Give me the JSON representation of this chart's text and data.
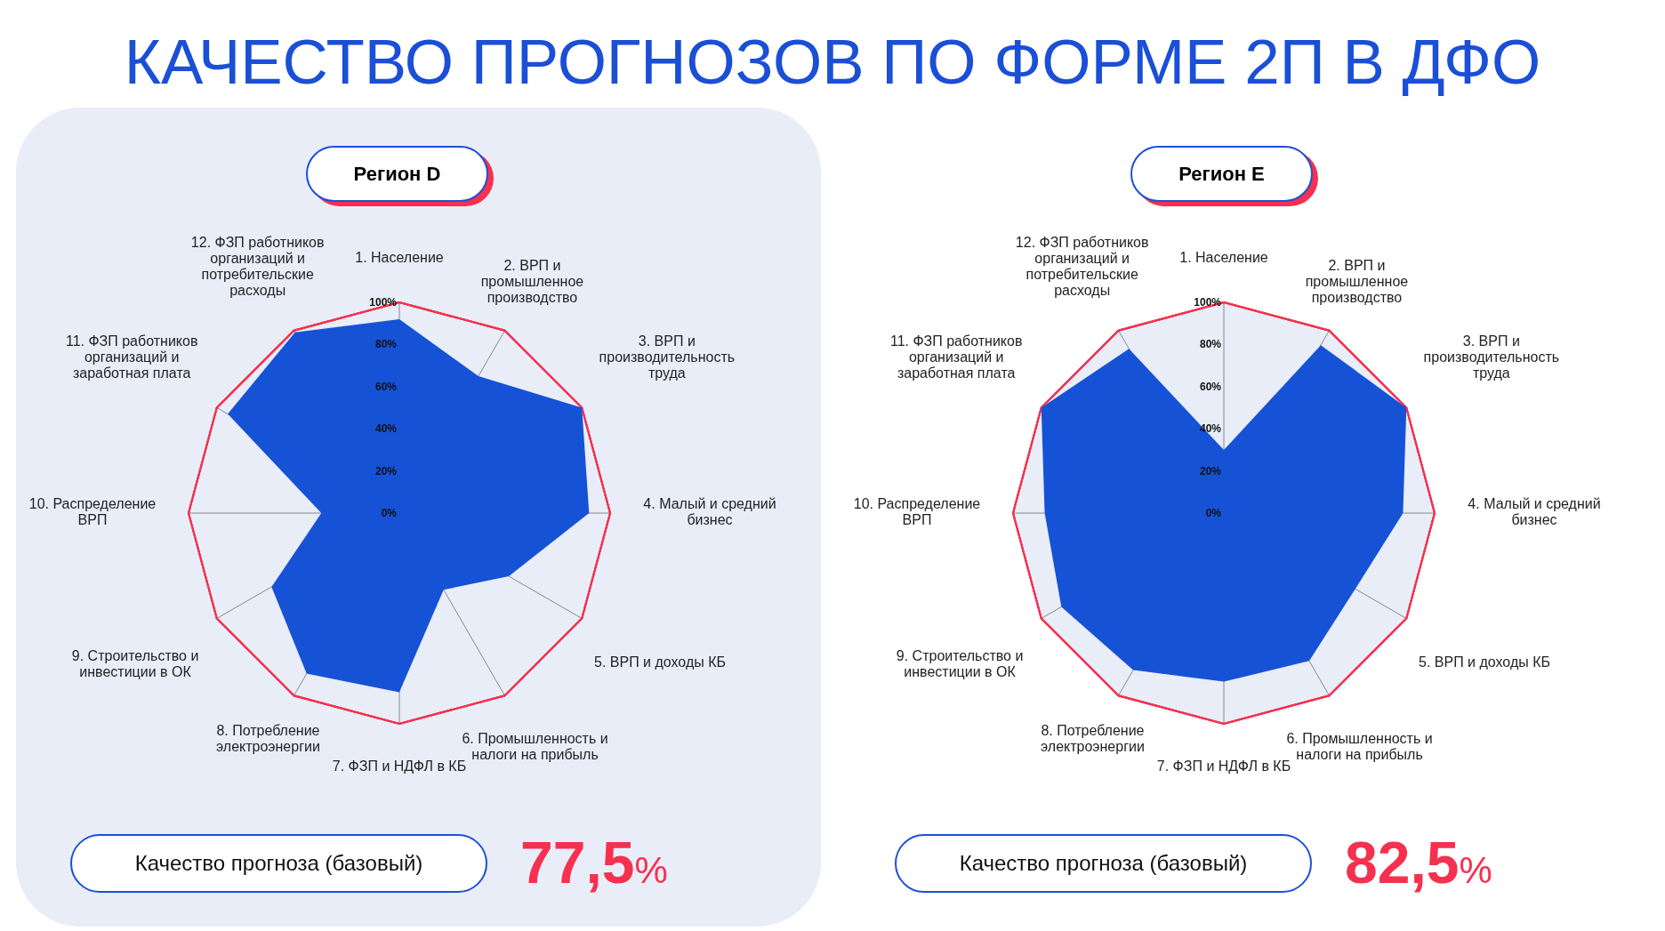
{
  "chart_data": [
    {
      "type": "radar",
      "title": "КАЧЕСТВО ПРОГНОЗОВ ПО ФОРМЕ 2П В ДФО",
      "subtitle": "Регион D",
      "categories": [
        "1. Население",
        "2. ВРП и промышленное производство",
        "3. ВРП и производительность труда",
        "4. Малый и средний бизнес",
        "5. ВРП и доходы КБ",
        "6. Промышленность и налоги на прибыль",
        "7. ФЗП и НДФЛ в КБ",
        "8. Потребление электроэнергии",
        "9. Строительство и инвестиции в ОК",
        "10. Распределение ВРП",
        "11. ФЗП работников организаций и заработная плата",
        "12. ФЗП работников организаций и потребительские расходы"
      ],
      "series": [
        {
          "color": "#1652d6",
          "values": [
            92,
            75,
            100,
            90,
            60,
            42,
            85,
            88,
            70,
            37,
            94,
            99
          ]
        }
      ],
      "ylim": [
        0,
        100
      ],
      "yticks": [
        {
          "value": 0,
          "label": "0%"
        },
        {
          "value": 20,
          "label": "20%"
        },
        {
          "value": 40,
          "label": "40%"
        },
        {
          "value": 60,
          "label": "60%"
        },
        {
          "value": 80,
          "label": "80%"
        },
        {
          "value": 100,
          "label": "100%"
        }
      ],
      "grid": true,
      "annotations": [
        "Качество прогноза (базовый)",
        "77,5%"
      ]
    },
    {
      "type": "radar",
      "subtitle": "Регион E",
      "categories": [
        "1. Население",
        "2. ВРП и промышленное производство",
        "3. ВРП и производительность труда",
        "4. Малый и средний бизнес",
        "5. ВРП и доходы КБ",
        "6. Промышленность и налоги на прибыль",
        "7. ФЗП и НДФЛ в КБ",
        "8. Потребление электроэнергии",
        "9. Строительство и инвестиции в ОК",
        "10. Распределение ВРП",
        "11. ФЗП работников организаций и заработная плата",
        "12. ФЗП работников организаций и потребительские расходы"
      ],
      "series": [
        {
          "color": "#1652d6",
          "values": [
            30,
            92,
            100,
            85,
            72,
            81,
            80,
            86,
            89,
            85,
            100,
            90
          ]
        }
      ],
      "ylim": [
        0,
        100
      ],
      "yticks": [
        {
          "value": 0,
          "label": "0%"
        },
        {
          "value": 20,
          "label": "20%"
        },
        {
          "value": 40,
          "label": "40%"
        },
        {
          "value": 60,
          "label": "60%"
        },
        {
          "value": 80,
          "label": "80%"
        },
        {
          "value": 100,
          "label": "100%"
        }
      ],
      "grid": true,
      "annotations": [
        "Качество прогноза (базовый)",
        "82,5%"
      ]
    }
  ]
}
